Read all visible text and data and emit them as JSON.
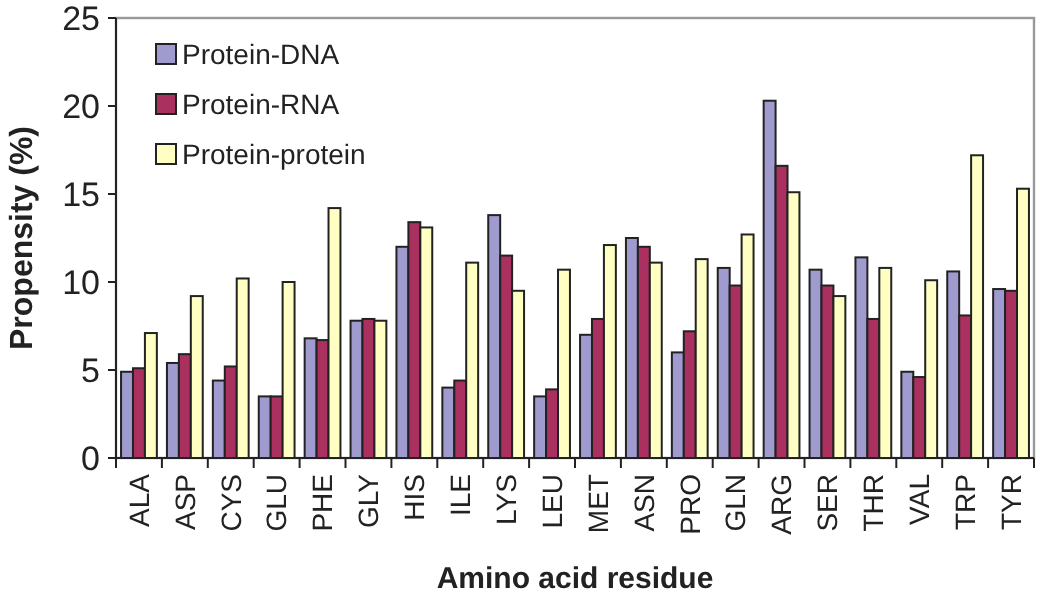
{
  "chart_data": {
    "type": "bar",
    "xlabel": "Amino acid residue",
    "ylabel": "Propensity (%)",
    "categories": [
      "ALA",
      "ASP",
      "CYS",
      "GLU",
      "PHE",
      "GLY",
      "HIS",
      "ILE",
      "LYS",
      "LEU",
      "MET",
      "ASN",
      "PRO",
      "GLN",
      "ARG",
      "SER",
      "THR",
      "VAL",
      "TRP",
      "TYR"
    ],
    "series": [
      {
        "name": "Protein-DNA",
        "color": "#9f9bcf",
        "values": [
          4.9,
          5.4,
          4.4,
          3.5,
          6.8,
          7.8,
          12.0,
          4.0,
          13.8,
          3.5,
          7.0,
          12.5,
          6.0,
          10.8,
          20.3,
          10.7,
          11.4,
          4.9,
          10.6,
          9.6
        ]
      },
      {
        "name": "Protein-RNA",
        "color": "#aa3060",
        "values": [
          5.1,
          5.9,
          5.2,
          3.5,
          6.7,
          7.9,
          13.4,
          4.4,
          11.5,
          3.9,
          7.9,
          12.0,
          7.2,
          9.8,
          16.6,
          9.8,
          7.9,
          4.6,
          8.1,
          9.5
        ]
      },
      {
        "name": "Protein-protein",
        "color": "#ffffc4",
        "values": [
          7.1,
          9.2,
          10.2,
          10.0,
          14.2,
          7.8,
          13.1,
          11.1,
          9.5,
          10.7,
          12.1,
          11.1,
          11.3,
          12.7,
          15.1,
          9.2,
          10.8,
          10.1,
          17.2,
          15.3
        ]
      }
    ],
    "ylim": [
      0,
      25
    ],
    "yticks": [
      0,
      5,
      10,
      15,
      20,
      25
    ],
    "grid": false,
    "legend": "top left"
  }
}
